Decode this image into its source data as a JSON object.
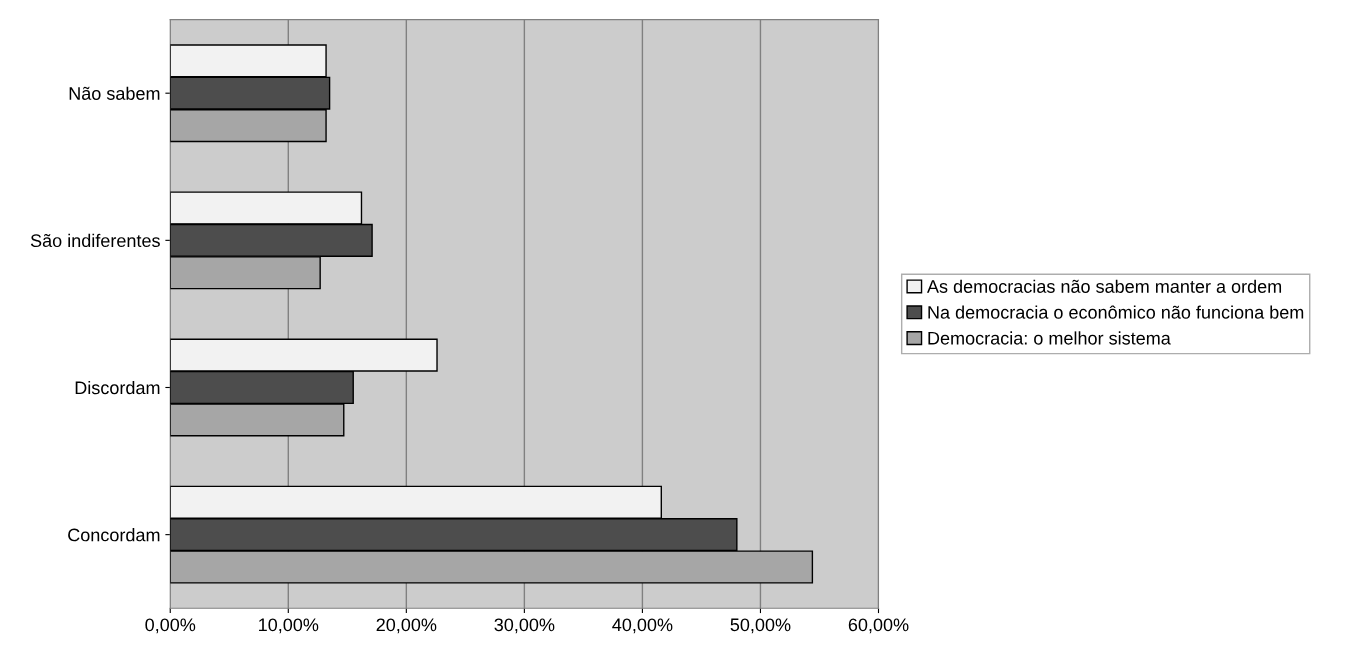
{
  "chart_data": {
    "type": "bar",
    "orientation": "horizontal",
    "categories": [
      "Não sabem",
      "São indiferentes",
      "Discordam",
      "Concordam"
    ],
    "series": [
      {
        "name": "As democracias não sabem manter a ordem",
        "color": "#f2f2f2",
        "values": [
          13.2,
          16.2,
          22.6,
          41.6
        ]
      },
      {
        "name": "Na democracia o econômico não funciona bem",
        "color": "#4d4d4d",
        "values": [
          13.5,
          17.1,
          15.5,
          48.0
        ]
      },
      {
        "name": "Democracia: o melhor sistema",
        "color": "#a6a6a6",
        "values": [
          13.2,
          12.7,
          14.7,
          54.4
        ]
      }
    ],
    "xlim": [
      0,
      60
    ],
    "xticks": [
      {
        "value": 0,
        "label": "0,00%"
      },
      {
        "value": 10,
        "label": "10,00%"
      },
      {
        "value": 20,
        "label": "20,00%"
      },
      {
        "value": 30,
        "label": "30,00%"
      },
      {
        "value": 40,
        "label": "40,00%"
      },
      {
        "value": 50,
        "label": "50,00%"
      },
      {
        "value": 60,
        "label": "60,00%"
      }
    ],
    "grid": "x",
    "legend": "right"
  }
}
